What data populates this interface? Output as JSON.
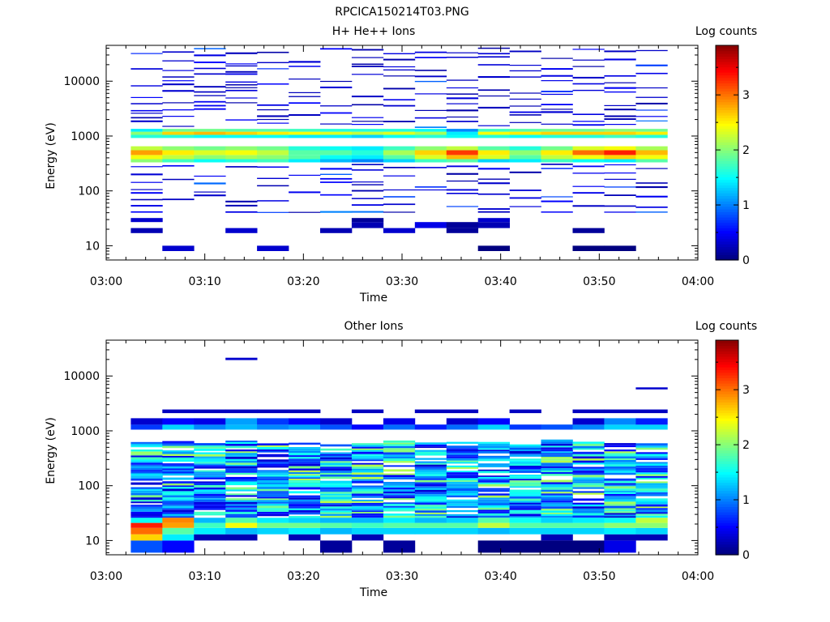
{
  "figure": {
    "title": "RPCICA150214T03.PNG"
  },
  "chart_data": [
    {
      "type": "heatmap",
      "title": "H+ He++ Ions",
      "xlabel": "Time",
      "ylabel": "Energy (eV)",
      "x_ticks": [
        "03:00",
        "03:10",
        "03:20",
        "03:30",
        "03:40",
        "03:50",
        "04:00"
      ],
      "x_range": [
        "03:00",
        "04:00"
      ],
      "y_scale": "log",
      "y_range": [
        5.5,
        45000
      ],
      "y_ticks": [
        10,
        100,
        1000,
        10000
      ],
      "y_tick_labels": [
        "10",
        "100",
        "1000",
        "10000"
      ],
      "colorbar": {
        "label": "Log counts",
        "range": [
          0,
          3.9
        ],
        "ticks": [
          0,
          1,
          2,
          3
        ],
        "tick_labels": [
          "0",
          "1",
          "2",
          "3"
        ]
      },
      "time_bins_start_min": [
        2.5,
        5.7,
        8.9,
        12.1,
        15.3,
        18.5,
        21.7,
        24.9,
        28.1,
        31.3,
        34.5,
        37.7,
        40.9,
        44.1,
        47.3,
        50.5,
        53.7
      ],
      "bands": [
        {
          "e_low": 330,
          "e_high": 380,
          "values": [
            2.0,
            1.7,
            1.5,
            1.6,
            1.7,
            1.4,
            1.2,
            1.0,
            1.3,
            1.7,
            1.8,
            1.3,
            1.4,
            1.7,
            1.5,
            1.4,
            1.8
          ]
        },
        {
          "e_low": 380,
          "e_high": 450,
          "values": [
            2.4,
            2.2,
            2.0,
            2.1,
            2.0,
            1.8,
            1.5,
            1.4,
            1.8,
            2.3,
            2.7,
            2.3,
            1.8,
            2.2,
            2.4,
            2.6,
            2.4
          ]
        },
        {
          "e_low": 450,
          "e_high": 550,
          "values": [
            2.8,
            2.5,
            2.3,
            2.4,
            2.2,
            1.8,
            1.8,
            1.6,
            2.1,
            2.6,
            3.2,
            2.5,
            2.0,
            2.5,
            3.0,
            3.3,
            2.7
          ]
        },
        {
          "e_low": 550,
          "e_high": 650,
          "values": [
            2.2,
            2.0,
            1.9,
            2.0,
            1.9,
            1.6,
            1.5,
            1.4,
            1.7,
            2.0,
            2.2,
            1.8,
            1.6,
            1.9,
            2.3,
            2.4,
            2.1
          ]
        },
        {
          "e_low": 920,
          "e_high": 1050,
          "values": [
            1.6,
            1.6,
            1.5,
            1.5,
            1.5,
            1.4,
            1.4,
            1.3,
            1.5,
            1.6,
            1.5,
            1.6,
            1.5,
            1.6,
            1.6,
            1.7,
            1.6
          ]
        },
        {
          "e_low": 1050,
          "e_high": 1200,
          "values": [
            2.0,
            2.6,
            2.7,
            2.6,
            2.5,
            2.4,
            2.3,
            2.2,
            2.3,
            2.1,
            1.4,
            2.4,
            2.5,
            2.6,
            2.6,
            2.6,
            2.5
          ]
        },
        {
          "e_low": 1200,
          "e_high": 1350,
          "values": [
            1.4,
            1.9,
            1.9,
            1.8,
            1.8,
            1.7,
            1.6,
            1.6,
            1.6,
            1.5,
            1.0,
            1.7,
            1.8,
            1.9,
            1.9,
            2.0,
            1.9
          ]
        },
        {
          "e_low": 8,
          "e_high": 10,
          "values": [
            null,
            0.3,
            null,
            null,
            0.3,
            null,
            null,
            null,
            null,
            null,
            null,
            0.0,
            null,
            null,
            0.0,
            0.0,
            null
          ]
        },
        {
          "e_low": 17,
          "e_high": 21,
          "values": [
            0.2,
            null,
            null,
            0.3,
            null,
            null,
            0.2,
            null,
            0.3,
            null,
            0.1,
            null,
            null,
            null,
            0.1,
            null,
            null
          ]
        },
        {
          "e_low": 21,
          "e_high": 27,
          "values": [
            null,
            null,
            null,
            null,
            null,
            null,
            null,
            0.2,
            null,
            0.4,
            0.1,
            0.2,
            null,
            null,
            null,
            null,
            null
          ]
        },
        {
          "e_low": 27,
          "e_high": 32,
          "values": [
            0.3,
            null,
            null,
            null,
            null,
            null,
            null,
            0.1,
            null,
            null,
            null,
            0.3,
            null,
            null,
            null,
            null,
            null
          ]
        }
      ]
    },
    {
      "type": "heatmap",
      "title": "Other Ions",
      "xlabel": "Time",
      "ylabel": "Energy (eV)",
      "x_ticks": [
        "03:00",
        "03:10",
        "03:20",
        "03:30",
        "03:40",
        "03:50",
        "04:00"
      ],
      "x_range": [
        "03:00",
        "04:00"
      ],
      "y_scale": "log",
      "y_range": [
        5.5,
        45000
      ],
      "y_ticks": [
        10,
        100,
        1000,
        10000
      ],
      "y_tick_labels": [
        "10",
        "100",
        "1000",
        "10000"
      ],
      "colorbar": {
        "label": "Log counts",
        "range": [
          0,
          3.9
        ],
        "ticks": [
          0,
          1,
          2,
          3
        ],
        "tick_labels": [
          "0",
          "1",
          "2",
          "3"
        ]
      },
      "time_bins_start_min": [
        2.5,
        5.7,
        8.9,
        12.1,
        15.3,
        18.5,
        21.7,
        24.9,
        28.1,
        31.3,
        34.5,
        37.7,
        40.9,
        44.1,
        47.3,
        50.5,
        53.7
      ],
      "energy_range_main": [
        30,
        600
      ],
      "bands": [
        {
          "e_low": 6,
          "e_high": 10,
          "values": [
            0.8,
            0.5,
            null,
            null,
            null,
            null,
            0.1,
            null,
            0.1,
            null,
            null,
            0.0,
            0.0,
            0.0,
            0.0,
            0.4,
            null
          ]
        },
        {
          "e_low": 10,
          "e_high": 13,
          "values": [
            2.6,
            1.4,
            0.2,
            0.2,
            null,
            0.2,
            null,
            0.2,
            null,
            null,
            null,
            null,
            null,
            0.2,
            null,
            0.2,
            0.2
          ]
        },
        {
          "e_low": 13,
          "e_high": 17,
          "values": [
            3.0,
            1.8,
            1.4,
            1.2,
            1.3,
            1.4,
            1.2,
            1.3,
            1.3,
            1.3,
            1.3,
            1.2,
            1.3,
            1.3,
            1.3,
            1.4,
            1.3
          ]
        },
        {
          "e_low": 17,
          "e_high": 21,
          "values": [
            3.3,
            2.8,
            1.7,
            2.4,
            1.9,
            1.9,
            1.8,
            1.7,
            1.8,
            1.8,
            1.8,
            2.2,
            1.8,
            1.8,
            1.8,
            2.0,
            2.0
          ]
        },
        {
          "e_low": 21,
          "e_high": 26,
          "values": [
            1.5,
            2.9,
            1.2,
            1.8,
            1.4,
            1.3,
            1.2,
            1.2,
            1.4,
            1.2,
            1.3,
            1.8,
            1.5,
            1.3,
            1.4,
            1.5,
            2.2
          ]
        },
        {
          "e_low": 1050,
          "e_high": 1300,
          "values": [
            0.7,
            1.3,
            1.0,
            1.2,
            1.0,
            1.1,
            0.8,
            0.5,
            0.9,
            0.6,
            0.9,
            1.3,
            0.7,
            0.8,
            1.0,
            1.3,
            1.3
          ]
        },
        {
          "e_low": 1300,
          "e_high": 1700,
          "values": [
            0.3,
            0.5,
            0.4,
            1.1,
            0.7,
            0.5,
            0.3,
            null,
            0.4,
            null,
            0.3,
            0.5,
            null,
            null,
            0.3,
            1.0,
            0.6
          ]
        }
      ]
    }
  ]
}
